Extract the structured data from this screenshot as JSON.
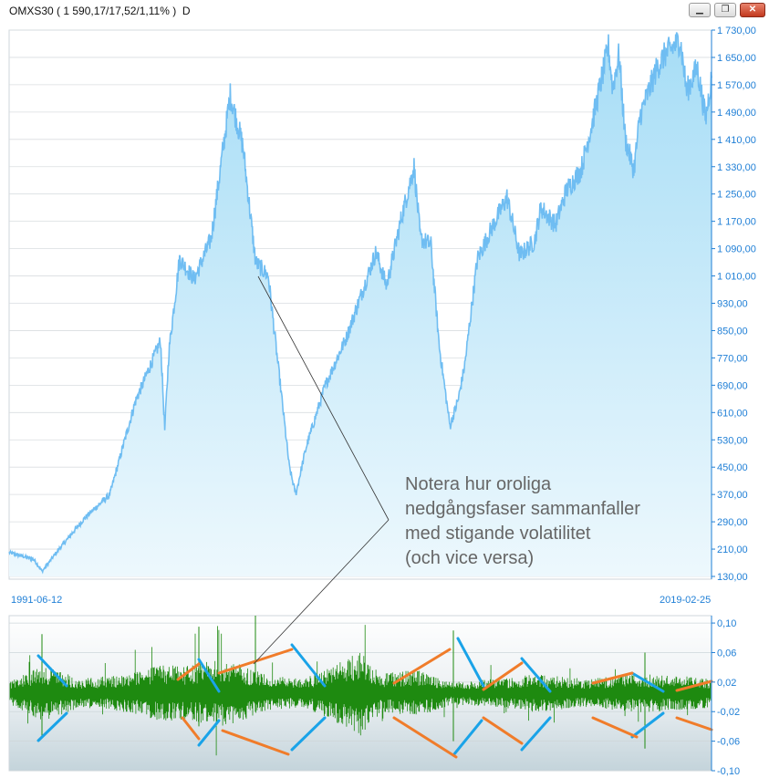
{
  "window": {
    "title": "OMXS30 ( 1 590,17/17,52/1,11% )  D",
    "minimize_icon": "minimize-icon",
    "restore_icon": "restore-icon",
    "close_icon": "close-icon"
  },
  "dates": {
    "start": "1991-06-12",
    "end": "2019-02-25"
  },
  "annotation": {
    "lines": [
      "Notera hur oroliga",
      "nedgångsfaser sammanfaller",
      "med stigande volatilitet",
      "(och vice versa)"
    ]
  },
  "colors": {
    "price_line": "#6fbdf2",
    "price_fill_top": "#a6ddf6",
    "axis_text": "#1f7fd6",
    "vol_bars": "#1e8a10",
    "blue_marks": "#1aa3e8",
    "orange_marks": "#f07c2a"
  },
  "chart_data": [
    {
      "type": "area",
      "y_ticks": [
        "1 730,00",
        "1 650,00",
        "1 570,00",
        "1 490,00",
        "1 410,00",
        "1 330,00",
        "1 250,00",
        "1 170,00",
        "1 090,00",
        "1 010,00",
        "930,00",
        "850,00",
        "770,00",
        "690,00",
        "610,00",
        "530,00",
        "450,00",
        "370,00",
        "290,00",
        "210,00",
        "130,00"
      ],
      "ylim": [
        130,
        1730
      ],
      "grid": true,
      "x": [
        "1991-06-12",
        "1992-06",
        "1992-10",
        "1993-06",
        "1994-06",
        "1995-06",
        "1996-06",
        "1997-06",
        "1997-08",
        "1997-10",
        "1998-03",
        "1998-10",
        "1999-06",
        "2000-03",
        "2000-09",
        "2001-03",
        "2001-09",
        "2002-07",
        "2002-10",
        "2003-03",
        "2003-12",
        "2004-10",
        "2005-12",
        "2006-05",
        "2006-12",
        "2007-06",
        "2007-09",
        "2008-02",
        "2008-06",
        "2008-11",
        "2009-03",
        "2009-06",
        "2009-12",
        "2010-06",
        "2011-02",
        "2011-08",
        "2012-03",
        "2012-06",
        "2013-01",
        "2013-06",
        "2014-01",
        "2014-06",
        "2015-02",
        "2015-04",
        "2015-07",
        "2015-10",
        "2016-02",
        "2016-05",
        "2017-01",
        "2017-05",
        "2017-12",
        "2018-03",
        "2018-08",
        "2018-12",
        "2019-02-25"
      ],
      "values": [
        200,
        180,
        145,
        210,
        300,
        370,
        640,
        820,
        560,
        790,
        1060,
        1000,
        1120,
        1540,
        1390,
        1050,
        1010,
        450,
        370,
        510,
        690,
        830,
        1080,
        980,
        1180,
        1330,
        1120,
        1100,
        800,
        570,
        650,
        750,
        1060,
        1140,
        1240,
        1070,
        1110,
        1210,
        1160,
        1260,
        1320,
        1450,
        1680,
        1560,
        1660,
        1410,
        1320,
        1480,
        1620,
        1660,
        1700,
        1550,
        1620,
        1470,
        1590
      ]
    },
    {
      "type": "bar",
      "y_ticks": [
        "0,10",
        "0,06",
        "0,02",
        "-0,02",
        "-0,06",
        "-0,10"
      ],
      "ylim": [
        -0.1,
        0.11
      ],
      "grid": true,
      "series": [
        {
          "values_note": "daily returns, range approx -0.06 to 0.11"
        }
      ]
    }
  ]
}
